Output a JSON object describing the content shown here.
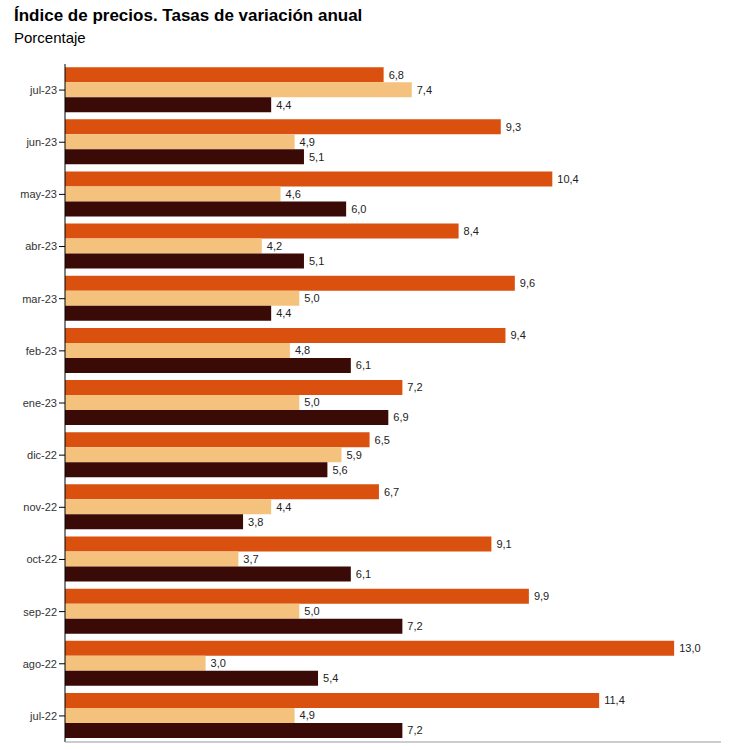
{
  "chart_data": {
    "type": "bar",
    "title": "Índice de precios. Tasas de variación anual",
    "subtitle": "Porcentaje",
    "orientation": "horizontal",
    "categories": [
      "jul-23",
      "jun-23",
      "may-23",
      "abr-23",
      "mar-23",
      "feb-23",
      "ene-23",
      "dic-22",
      "nov-22",
      "oct-22",
      "sep-22",
      "ago-22",
      "jul-22"
    ],
    "series": [
      {
        "color": "#D9500F",
        "values": [
          6.8,
          9.3,
          10.4,
          8.4,
          9.6,
          9.4,
          7.2,
          6.5,
          6.7,
          9.1,
          9.9,
          13.0,
          11.4
        ],
        "value_labels": [
          "6,8",
          "9,3",
          "10,4",
          "8,4",
          "9,6",
          "9,4",
          "7,2",
          "6,5",
          "6,7",
          "9,1",
          "9,9",
          "13,0",
          "11,4"
        ]
      },
      {
        "color": "#F5C27E",
        "values": [
          7.4,
          4.9,
          4.6,
          4.2,
          5.0,
          4.8,
          5.0,
          5.9,
          4.4,
          3.7,
          5.0,
          3.0,
          4.9
        ],
        "value_labels": [
          "7,4",
          "4,9",
          "4,6",
          "4,2",
          "5,0",
          "4,8",
          "5,0",
          "5,9",
          "4,4",
          "3,7",
          "5,0",
          "3,0",
          "4,9"
        ]
      },
      {
        "color": "#3A0A06",
        "values": [
          4.4,
          5.1,
          6.0,
          5.1,
          4.4,
          6.1,
          6.9,
          5.6,
          3.8,
          6.1,
          7.2,
          5.4,
          7.2
        ],
        "value_labels": [
          "4,4",
          "5,1",
          "6,0",
          "5,1",
          "4,4",
          "6,1",
          "6,9",
          "5,6",
          "3,8",
          "6,1",
          "7,2",
          "5,4",
          "7,2"
        ]
      }
    ],
    "xlim": [
      0,
      14
    ],
    "tick_labels": "y",
    "data_labels": true,
    "grid": false
  }
}
